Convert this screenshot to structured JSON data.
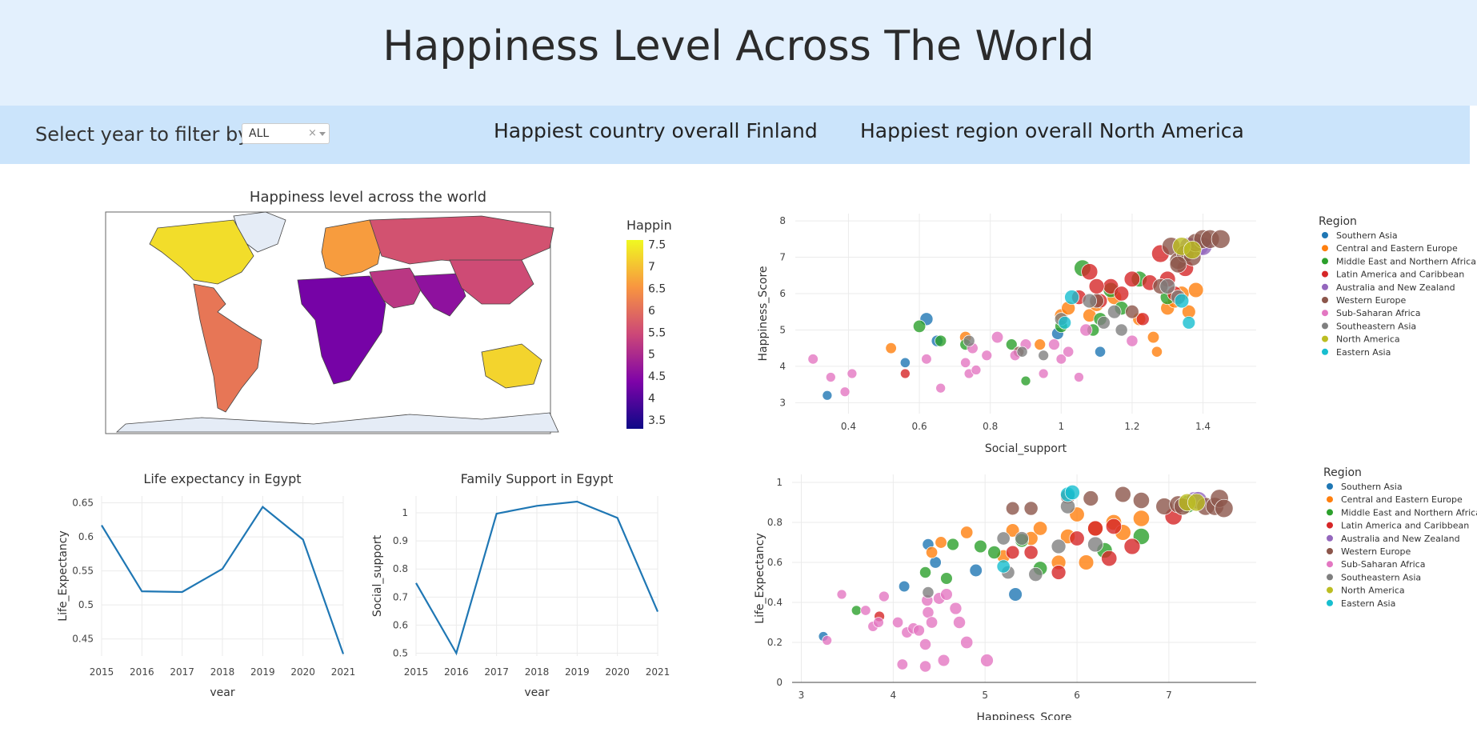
{
  "header": {
    "title": "Happiness Level Across The World"
  },
  "filter": {
    "label": "Select year to filter by",
    "value": "ALL",
    "clear_glyph": "×"
  },
  "stats": {
    "country": "Happiest country overall Finland",
    "region": "Happiest region overall North America"
  },
  "colors": {
    "Southern Asia": "#1f77b4",
    "Central and Eastern Europe": "#ff7f0e",
    "Middle East and Northern Africa": "#2ca02c",
    "Latin America and Caribbean": "#d62728",
    "Australia and New Zealand": "#9467bd",
    "Western Europe": "#8c564b",
    "Sub-Saharan Africa": "#e377c2",
    "Southeastern Asia": "#7f7f7f",
    "North America": "#bcbd22",
    "Eastern Asia": "#17becf",
    "line": "#1f77b4",
    "land_nodata": "#e5ecf6"
  },
  "chart_data": [
    {
      "type": "choropleth",
      "title": "Happiness level across the world",
      "colorbar_title": "Happiness_Score",
      "colorbar_ticks": [
        "7.5",
        "7",
        "6.5",
        "6",
        "5.5",
        "5",
        "4.5",
        "4",
        "3.5"
      ],
      "range": [
        3.3,
        7.6
      ],
      "regions": [
        {
          "name": "North America",
          "value": 7.3
        },
        {
          "name": "Latin America",
          "value": 6.1
        },
        {
          "name": "Europe",
          "value": 6.6
        },
        {
          "name": "Russia",
          "value": 5.6
        },
        {
          "name": "Middle East",
          "value": 5.2
        },
        {
          "name": "Africa",
          "value": 4.3
        },
        {
          "name": "South Asia",
          "value": 4.6
        },
        {
          "name": "East Asia",
          "value": 5.5
        },
        {
          "name": "Australia",
          "value": 7.2
        }
      ]
    },
    {
      "type": "scatter",
      "xlabel": "Social_support",
      "ylabel": "Happiness_Score",
      "xlim": [
        0.25,
        1.55
      ],
      "ylim": [
        2.7,
        8.2
      ],
      "xticks": [
        "0.4",
        "0.6",
        "0.8",
        "1",
        "1.2",
        "1.4"
      ],
      "yticks": [
        "3",
        "4",
        "5",
        "6",
        "7",
        "8"
      ],
      "legend_title": "Region",
      "legend_position": "right",
      "legend": [
        "Southern Asia",
        "Central and Eastern Europe",
        "Middle East and Northern Africa",
        "Latin America and Caribbean",
        "Australia and New Zealand",
        "Western Europe",
        "Sub-Saharan Africa",
        "Southeastern Asia",
        "North America",
        "Eastern Asia"
      ],
      "series": [
        {
          "name": "Southern Asia",
          "x": [
            0.34,
            0.56,
            0.62,
            0.65,
            0.99,
            1.11
          ],
          "y": [
            3.2,
            4.1,
            5.3,
            4.7,
            4.9,
            4.4
          ]
        },
        {
          "name": "Central and Eastern Europe",
          "x": [
            0.52,
            0.73,
            0.94,
            1.0,
            1.02,
            1.08,
            1.1,
            1.15,
            1.22,
            1.26,
            1.3,
            1.34,
            1.36,
            1.38,
            1.27,
            1.32
          ],
          "y": [
            4.5,
            4.8,
            4.6,
            5.4,
            5.6,
            5.4,
            5.7,
            5.9,
            5.3,
            4.8,
            5.6,
            6.0,
            5.5,
            6.1,
            4.4,
            5.8
          ]
        },
        {
          "name": "Middle East and Northern Africa",
          "x": [
            0.6,
            0.66,
            0.73,
            0.86,
            0.9,
            1.0,
            1.06,
            1.09,
            1.11,
            1.14,
            1.17,
            1.22,
            1.3,
            1.35
          ],
          "y": [
            5.1,
            4.7,
            4.6,
            4.6,
            3.6,
            5.1,
            6.7,
            5.0,
            5.3,
            6.1,
            5.6,
            6.4,
            5.9,
            7.1
          ]
        },
        {
          "name": "Latin America and Caribbean",
          "x": [
            0.56,
            1.05,
            1.08,
            1.11,
            1.14,
            1.17,
            1.2,
            1.23,
            1.25,
            1.28,
            1.3,
            1.32,
            1.35,
            1.1
          ],
          "y": [
            3.8,
            5.9,
            6.6,
            5.8,
            6.2,
            6.0,
            6.4,
            5.3,
            6.3,
            7.1,
            6.4,
            6.0,
            6.7,
            6.2
          ]
        },
        {
          "name": "Australia and New Zealand",
          "x": [
            1.36,
            1.39,
            1.4
          ],
          "y": [
            7.3,
            7.3,
            7.3
          ]
        },
        {
          "name": "Western Europe",
          "x": [
            0.88,
            1.1,
            1.2,
            1.28,
            1.31,
            1.33,
            1.35,
            1.37,
            1.38,
            1.4,
            1.42,
            1.45,
            1.33
          ],
          "y": [
            4.4,
            5.8,
            5.5,
            6.2,
            7.3,
            6.9,
            7.1,
            7.0,
            7.4,
            7.5,
            7.5,
            7.5,
            6.8
          ]
        },
        {
          "name": "Sub-Saharan Africa",
          "x": [
            0.3,
            0.35,
            0.39,
            0.41,
            0.62,
            0.66,
            0.74,
            0.75,
            0.76,
            0.79,
            0.82,
            0.87,
            0.9,
            0.95,
            0.98,
            1.0,
            1.02,
            1.05,
            1.07,
            1.2,
            0.73
          ],
          "y": [
            4.2,
            3.7,
            3.3,
            3.8,
            4.2,
            3.4,
            3.8,
            4.5,
            3.9,
            4.3,
            4.8,
            4.3,
            4.6,
            3.8,
            4.6,
            4.2,
            4.4,
            3.7,
            5.0,
            4.7,
            4.1
          ]
        },
        {
          "name": "Southeastern Asia",
          "x": [
            0.74,
            0.89,
            0.95,
            1.0,
            1.08,
            1.12,
            1.15,
            1.17,
            1.3,
            1.33
          ],
          "y": [
            4.7,
            4.4,
            4.3,
            5.3,
            5.8,
            5.2,
            5.5,
            5.0,
            6.2,
            5.9
          ]
        },
        {
          "name": "North America",
          "x": [
            1.34,
            1.37
          ],
          "y": [
            7.3,
            7.2
          ]
        },
        {
          "name": "Eastern Asia",
          "x": [
            1.01,
            1.03,
            1.34,
            1.36
          ],
          "y": [
            5.2,
            5.9,
            5.8,
            5.2
          ]
        }
      ]
    },
    {
      "type": "line",
      "title": "Life expectancy in Egypt",
      "xlabel": "year",
      "ylabel": "Life_Expectancy",
      "x": [
        2015,
        2016,
        2017,
        2018,
        2019,
        2020,
        2021
      ],
      "y": [
        0.617,
        0.52,
        0.519,
        0.553,
        0.644,
        0.596,
        0.428
      ],
      "xlim": [
        2015,
        2021
      ],
      "ylim": [
        0.425,
        0.66
      ],
      "yticks": [
        "0.45",
        "0.5",
        "0.55",
        "0.6",
        "0.65"
      ],
      "xticks": [
        "2015",
        "2016",
        "2017",
        "2018",
        "2019",
        "2020",
        "2021"
      ]
    },
    {
      "type": "line",
      "title": "Family Support in Egypt",
      "xlabel": "year",
      "ylabel": "Social_support",
      "x": [
        2015,
        2016,
        2017,
        2018,
        2019,
        2020,
        2021
      ],
      "y": [
        0.75,
        0.5,
        0.997,
        1.025,
        1.04,
        0.982,
        0.648
      ],
      "xlim": [
        2015,
        2021
      ],
      "ylim": [
        0.49,
        1.06
      ],
      "yticks": [
        "0.5",
        "0.6",
        "0.7",
        "0.8",
        "0.9",
        "1"
      ],
      "xticks": [
        "2015",
        "2016",
        "2017",
        "2018",
        "2019",
        "2020",
        "2021"
      ]
    },
    {
      "type": "scatter",
      "xlabel": "Happiness_Score",
      "ylabel": "Life_Expectancy",
      "xlim": [
        2.9,
        7.95
      ],
      "ylim": [
        0,
        1.04
      ],
      "xticks": [
        "3",
        "4",
        "5",
        "6",
        "7"
      ],
      "yticks": [
        "0",
        "0.2",
        "0.4",
        "0.6",
        "0.8",
        "1"
      ],
      "legend_title": "Region",
      "legend_position": "right",
      "legend": [
        "Southern Asia",
        "Central and Eastern Europe",
        "Middle East and Northern Africa",
        "Latin America and Caribbean",
        "Australia and New Zealand",
        "Western Europe",
        "Sub-Saharan Africa",
        "Southeastern Asia",
        "North America",
        "Eastern Asia"
      ],
      "series": [
        {
          "name": "Southern Asia",
          "x": [
            3.24,
            4.12,
            4.38,
            4.46,
            4.9,
            5.33
          ],
          "y": [
            0.23,
            0.48,
            0.69,
            0.6,
            0.56,
            0.44
          ]
        },
        {
          "name": "Central and Eastern Europe",
          "x": [
            4.42,
            4.52,
            4.8,
            5.2,
            5.3,
            5.5,
            5.6,
            5.8,
            5.9,
            6.0,
            6.1,
            6.2,
            6.4,
            6.5,
            6.7
          ],
          "y": [
            0.65,
            0.7,
            0.75,
            0.63,
            0.76,
            0.72,
            0.77,
            0.6,
            0.73,
            0.84,
            0.6,
            0.77,
            0.8,
            0.75,
            0.82
          ]
        },
        {
          "name": "Middle East and Northern Africa",
          "x": [
            3.6,
            4.35,
            4.58,
            4.65,
            4.95,
            5.1,
            5.4,
            5.6,
            6.3,
            6.7,
            7.2
          ],
          "y": [
            0.36,
            0.55,
            0.52,
            0.69,
            0.68,
            0.65,
            0.71,
            0.57,
            0.66,
            0.73,
            0.89
          ]
        },
        {
          "name": "Latin America and Caribbean",
          "x": [
            3.85,
            5.3,
            5.5,
            5.8,
            6.0,
            6.2,
            6.35,
            6.4,
            6.6,
            7.05
          ],
          "y": [
            0.33,
            0.65,
            0.65,
            0.55,
            0.72,
            0.77,
            0.62,
            0.78,
            0.68,
            0.83
          ]
        },
        {
          "name": "Australia and New Zealand",
          "x": [
            7.28,
            7.32
          ],
          "y": [
            0.91,
            0.91
          ]
        },
        {
          "name": "Western Europe",
          "x": [
            5.3,
            5.5,
            5.9,
            6.15,
            6.5,
            6.7,
            6.95,
            7.1,
            7.15,
            7.4,
            7.5,
            7.55,
            7.6
          ],
          "y": [
            0.87,
            0.87,
            0.93,
            0.92,
            0.94,
            0.91,
            0.88,
            0.89,
            0.88,
            0.88,
            0.88,
            0.92,
            0.87
          ]
        },
        {
          "name": "Sub-Saharan Africa",
          "x": [
            3.28,
            3.44,
            3.7,
            3.78,
            3.84,
            3.9,
            4.05,
            4.1,
            4.15,
            4.22,
            4.28,
            4.35,
            4.35,
            4.38,
            4.42,
            4.5,
            4.55,
            4.58,
            4.68,
            4.72,
            4.8,
            5.02,
            4.37
          ],
          "y": [
            0.21,
            0.44,
            0.36,
            0.28,
            0.3,
            0.43,
            0.3,
            0.09,
            0.25,
            0.27,
            0.26,
            0.19,
            0.08,
            0.35,
            0.3,
            0.42,
            0.11,
            0.44,
            0.37,
            0.3,
            0.2,
            0.11,
            0.41
          ]
        },
        {
          "name": "Southeastern Asia",
          "x": [
            4.38,
            5.2,
            5.25,
            5.4,
            5.55,
            5.8,
            5.9,
            6.2
          ],
          "y": [
            0.45,
            0.72,
            0.55,
            0.72,
            0.54,
            0.68,
            0.88,
            0.69
          ]
        },
        {
          "name": "North America",
          "x": [
            7.2,
            7.3
          ],
          "y": [
            0.9,
            0.9
          ]
        },
        {
          "name": "Eastern Asia",
          "x": [
            5.2,
            5.9,
            5.95
          ],
          "y": [
            0.58,
            0.94,
            0.95
          ]
        }
      ]
    }
  ]
}
